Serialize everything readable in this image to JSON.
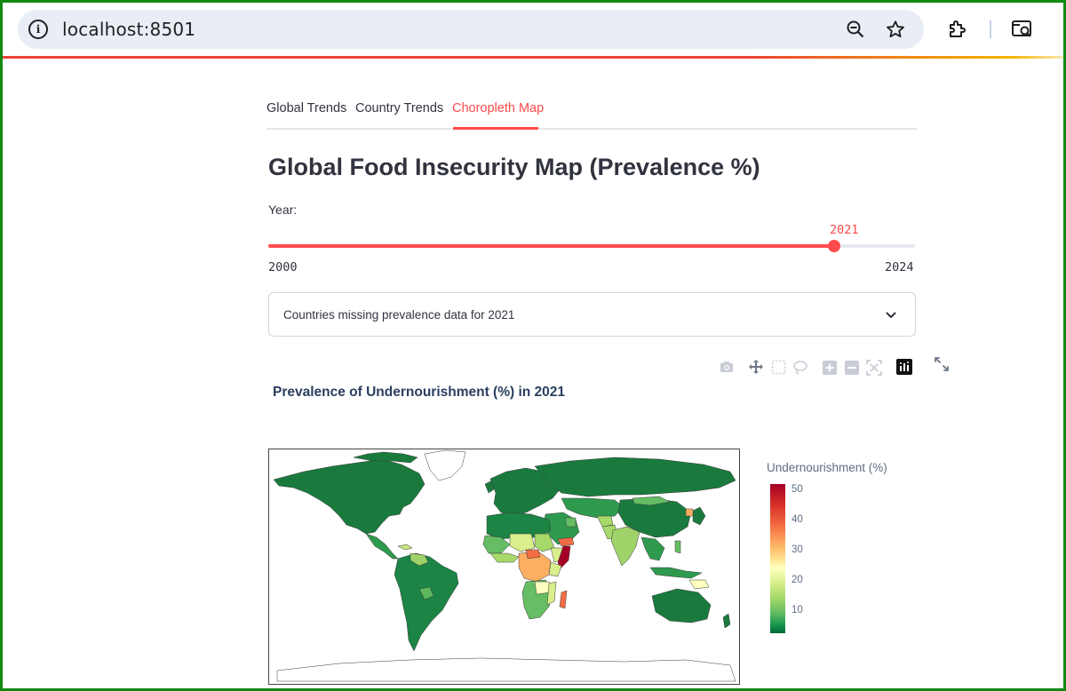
{
  "browser": {
    "url": "localhost:8501",
    "icons": [
      "info-icon",
      "zoom-out-icon",
      "star-icon",
      "extensions-icon",
      "tab-search-icon"
    ]
  },
  "tabs": [
    {
      "label": "Global Trends",
      "active": false
    },
    {
      "label": "Country Trends",
      "active": false
    },
    {
      "label": "Choropleth Map",
      "active": true
    }
  ],
  "page_title": "Global Food Insecurity Map (Prevalence %)",
  "year_slider": {
    "label": "Year:",
    "value": 2021,
    "value_label": "2021",
    "min": 2000,
    "max": 2024,
    "min_label": "2000",
    "max_label": "2024"
  },
  "expander": {
    "label": "Countries missing prevalence data for 2021",
    "icon": "chevron-down-icon"
  },
  "plot_toolbar": {
    "icons": [
      "camera-icon",
      "pan-icon",
      "box-select-icon",
      "lasso-icon",
      "zoom-in-icon",
      "zoom-out-icon",
      "autoscale-icon",
      "plotly-logo-icon"
    ],
    "fullscreen_icon": "fullscreen-icon"
  },
  "chart_data": {
    "type": "choropleth",
    "title": "Prevalence of Undernourishment (%) in 2021",
    "colorbar": {
      "title": "Undernourishment (%)",
      "ticks": [
        "10",
        "20",
        "30",
        "40",
        "50"
      ],
      "range": [
        2.5,
        52
      ],
      "colorscale": "RdYlGn reversed"
    },
    "colors": {
      "low": "#006837",
      "mid": "#ffffbf",
      "high": "#a50026",
      "accent": "#ff4b4b"
    }
  }
}
